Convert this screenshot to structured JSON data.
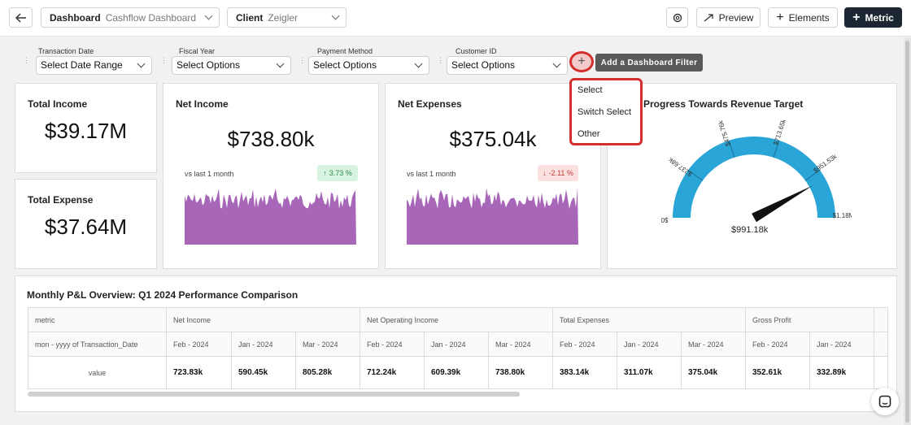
{
  "header": {
    "dashboard_label": "Dashboard",
    "dashboard_value": "Cashflow Dashboard",
    "client_label": "Client",
    "client_value": "Zeigler",
    "preview_label": "Preview",
    "elements_label": "Elements",
    "metric_label": "Metric"
  },
  "filters": [
    {
      "caption": "Transaction Date",
      "value": "Select Date Range"
    },
    {
      "caption": "Fiscal Year",
      "value": "Select Options"
    },
    {
      "caption": "Payment Method",
      "value": "Select Options"
    },
    {
      "caption": "Customer ID",
      "value": "Select Options"
    }
  ],
  "add_filter": {
    "tooltip": "Add a Dashboard Filter",
    "menu": [
      "Select",
      "Switch Select",
      "Other"
    ]
  },
  "cards": {
    "total_income": {
      "title": "Total Income",
      "value": "$39.17M"
    },
    "total_expense": {
      "title": "Total Expense",
      "value": "$37.64M"
    },
    "net_income": {
      "title": "Net Income",
      "value": "$738.80k",
      "compare": "vs last 1 month",
      "delta": "3.73 %",
      "direction": "up"
    },
    "net_expenses": {
      "title": "Net Expenses",
      "value": "$375.04k",
      "compare": "vs last 1 month",
      "delta": "-2.11 %",
      "direction": "down"
    },
    "revenue_target": {
      "title": "Progress Towards Revenue Target",
      "value_label": "$991.18k",
      "value": 991.18,
      "max": 1180,
      "ticks": [
        "$0",
        "$237.68k",
        "$475.76k",
        "$713.65k",
        "$951.53k",
        "$1.18M"
      ],
      "color": "#2aa5d8"
    }
  },
  "table": {
    "title": "Monthly P&L Overview: Q1 2024 Performance Comparison",
    "row_labels": [
      "metric",
      "mon - yyyy of Transaction_Date",
      "value"
    ],
    "groups": [
      {
        "name": "Net Income",
        "months": [
          "Feb - 2024",
          "Jan - 2024",
          "Mar - 2024"
        ],
        "values": [
          "723.83k",
          "590.45k",
          "805.28k"
        ]
      },
      {
        "name": "Net Operating Income",
        "months": [
          "Feb - 2024",
          "Jan - 2024",
          "Mar - 2024"
        ],
        "values": [
          "712.24k",
          "609.39k",
          "738.80k"
        ]
      },
      {
        "name": "Total Expenses",
        "months": [
          "Feb - 2024",
          "Jan - 2024",
          "Mar - 2024"
        ],
        "values": [
          "383.14k",
          "311.07k",
          "375.04k"
        ]
      },
      {
        "name": "Gross Profit",
        "months": [
          "Feb - 2024",
          "Jan - 2024"
        ],
        "values": [
          "352.61k",
          "332.89k"
        ]
      }
    ]
  },
  "colors": {
    "spark": "#a866b8",
    "accent": "#1d2733",
    "highlight": "#d32f2f"
  }
}
